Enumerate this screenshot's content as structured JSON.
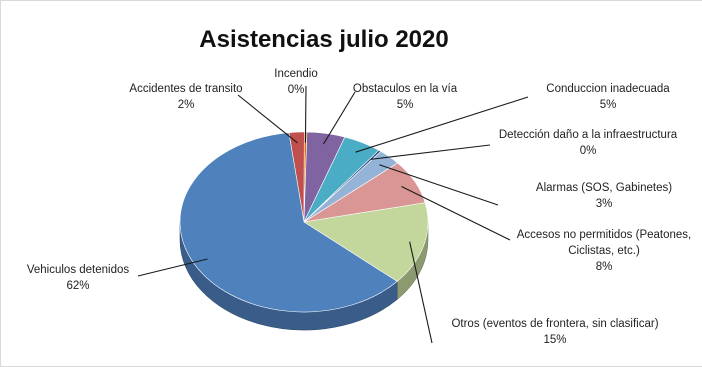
{
  "chart_data": {
    "type": "pie",
    "title": "Asistencias julio 2020",
    "slices": [
      {
        "label": [
          "Accidentes de transito"
        ],
        "pct": "2%",
        "value": 2,
        "color": "#c0504d"
      },
      {
        "label": [
          "Incendio"
        ],
        "pct": "0%",
        "value": 0,
        "color": "#e46c0a"
      },
      {
        "label": [
          "Obstaculos en la vía"
        ],
        "pct": "5%",
        "value": 5,
        "color": "#8064a2"
      },
      {
        "label": [
          "Conduccion inadecuada"
        ],
        "pct": "5%",
        "value": 5,
        "color": "#4bacc6"
      },
      {
        "label": [
          "Detección daño a la infraestructura"
        ],
        "pct": "0%",
        "value": 0,
        "color": "#1f497d"
      },
      {
        "label": [
          "Alarmas (SOS, Gabinetes)"
        ],
        "pct": "3%",
        "value": 3,
        "color": "#95b3d7"
      },
      {
        "label": [
          "Accesos no permitidos (Peatones,",
          "Ciclistas, etc.)"
        ],
        "pct": "8%",
        "value": 8,
        "color": "#d99694"
      },
      {
        "label": [
          "Otros (eventos de frontera, sin clasificar)"
        ],
        "pct": "15%",
        "value": 15,
        "color": "#c3d69b"
      },
      {
        "label": [
          "Vehiculos detenidos"
        ],
        "pct": "62%",
        "value": 62,
        "color": "#4f81bd"
      }
    ],
    "legend": "none"
  }
}
